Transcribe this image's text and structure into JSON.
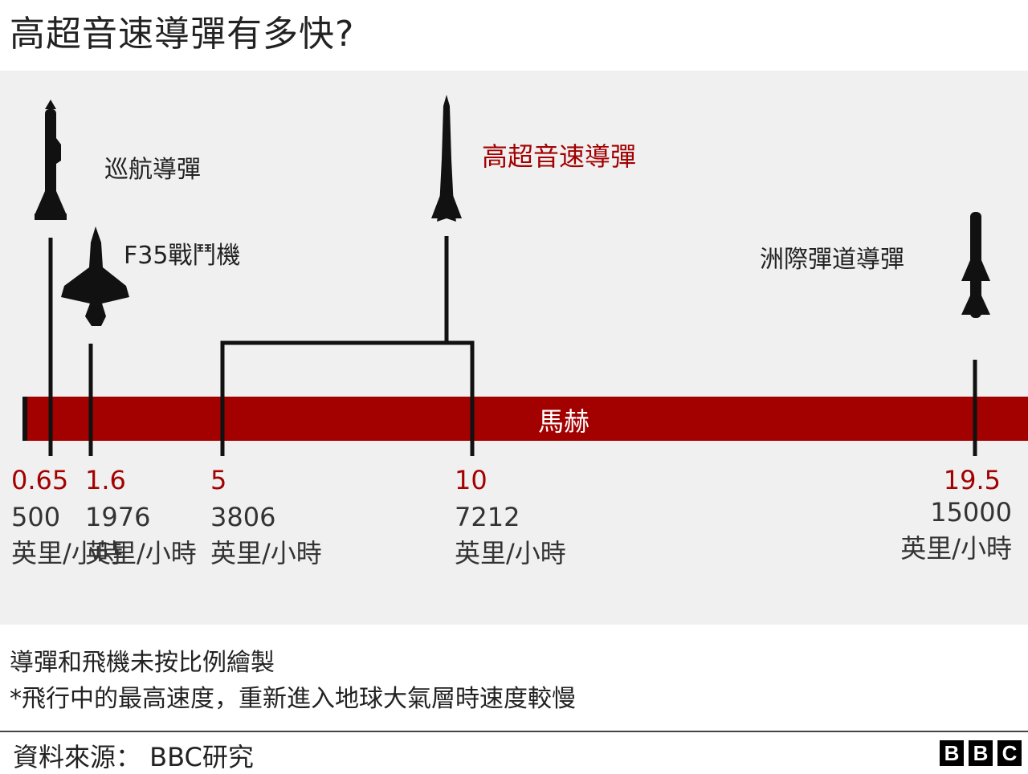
{
  "title": "高超音速導彈有多快?",
  "chart_data": {
    "type": "bar",
    "bar_label": "馬赫",
    "bar_color": "#a30000",
    "accent_color": "#a30000",
    "speed_unit": "英里/小時",
    "items": [
      {
        "name": "巡航導彈",
        "mach": 0.65,
        "mach_label": "0.65",
        "mph": "500",
        "icon": "cruise-missile-icon"
      },
      {
        "name": "F35戰鬥機",
        "mach": 1.6,
        "mach_label": "1.6",
        "mph": "1976",
        "icon": "fighter-jet-icon"
      },
      {
        "name": "高超音速導彈",
        "mach_range": [
          5,
          10
        ],
        "mach_labels": [
          "5",
          "10"
        ],
        "mph": [
          "3806",
          "7212"
        ],
        "icon": "hypersonic-missile-icon",
        "highlight": true
      },
      {
        "name": "洲際彈道導彈",
        "mach": 19.5,
        "mach_label": "19.5",
        "mph": "15000",
        "icon": "icbm-icon"
      }
    ]
  },
  "notes": [
    "導彈和飛機未按比例繪製",
    "*飛行中的最高速度，重新進入地球大氣層時速度較慢"
  ],
  "source": "資料來源： BBC研究",
  "logo": [
    "B",
    "B",
    "C"
  ]
}
